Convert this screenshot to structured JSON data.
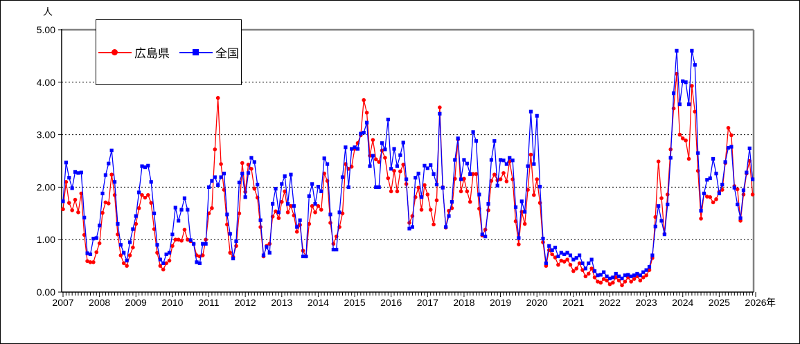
{
  "chart_data": {
    "type": "line",
    "title": "",
    "y_axis": {
      "unit": "人",
      "ticks": [
        "0.00",
        "1.00",
        "2.00",
        "3.00",
        "4.00",
        "5.00"
      ],
      "lim": [
        0,
        5
      ]
    },
    "x_axis": {
      "unit": "年",
      "start_year": 2007,
      "end_year": 2026,
      "interval": "monthly"
    },
    "grid": "horizontal dashed at 1.00 steps",
    "legend_position": "top-left",
    "series": [
      {
        "name": "広島県",
        "color": "#ff0000",
        "marker": "circle",
        "start": "2007-01",
        "values": [
          1.58,
          2.1,
          1.7,
          1.56,
          1.76,
          1.52,
          1.88,
          1.09,
          0.59,
          0.57,
          0.57,
          0.76,
          0.93,
          1.51,
          1.71,
          1.69,
          2.24,
          1.85,
          1.1,
          0.7,
          0.55,
          0.5,
          0.7,
          0.85,
          1.3,
          1.6,
          1.85,
          1.8,
          1.85,
          1.7,
          1.2,
          0.75,
          0.5,
          0.43,
          0.55,
          0.6,
          0.88,
          1.0,
          1.0,
          0.98,
          1.19,
          1.0,
          0.97,
          0.92,
          0.7,
          0.68,
          0.7,
          1.0,
          1.5,
          1.6,
          2.72,
          3.7,
          2.44,
          1.95,
          1.29,
          0.75,
          0.67,
          0.88,
          1.5,
          2.46,
          1.91,
          2.43,
          2.35,
          1.97,
          1.8,
          1.24,
          0.68,
          0.88,
          0.92,
          1.44,
          1.54,
          1.41,
          1.72,
          1.92,
          1.52,
          1.64,
          1.46,
          1.15,
          1.28,
          0.79,
          0.68,
          1.3,
          1.64,
          1.52,
          1.64,
          1.57,
          2.26,
          2.12,
          1.32,
          0.92,
          1.06,
          1.24,
          1.5,
          2.44,
          2.35,
          2.39,
          2.73,
          2.84,
          2.99,
          3.66,
          3.42,
          2.6,
          2.9,
          2.53,
          2.48,
          2.7,
          2.56,
          2.17,
          1.92,
          2.31,
          1.92,
          2.3,
          2.43,
          2.06,
          1.32,
          1.45,
          1.81,
          1.99,
          1.57,
          2.04,
          1.86,
          1.57,
          1.29,
          1.75,
          3.52,
          2.0,
          1.23,
          1.55,
          1.6,
          2.16,
          2.91,
          1.92,
          2.16,
          1.92,
          1.72,
          2.25,
          2.25,
          1.59,
          1.08,
          1.19,
          1.56,
          2.12,
          2.24,
          2.13,
          2.15,
          2.27,
          2.11,
          2.49,
          2.15,
          1.35,
          0.91,
          1.53,
          1.3,
          1.95,
          2.62,
          1.85,
          2.15,
          1.7,
          0.95,
          0.5,
          0.8,
          0.72,
          0.66,
          0.52,
          0.6,
          0.58,
          0.62,
          0.52,
          0.4,
          0.45,
          0.55,
          0.42,
          0.3,
          0.35,
          0.45,
          0.28,
          0.2,
          0.18,
          0.25,
          0.22,
          0.15,
          0.18,
          0.28,
          0.22,
          0.13,
          0.2,
          0.28,
          0.2,
          0.25,
          0.3,
          0.22,
          0.28,
          0.32,
          0.42,
          0.65,
          1.43,
          2.49,
          1.79,
          1.11,
          1.86,
          2.72,
          3.5,
          4.16,
          3.0,
          2.93,
          2.89,
          2.54,
          3.93,
          3.44,
          2.31,
          1.4,
          1.88,
          1.82,
          1.81,
          1.71,
          1.77,
          1.91,
          1.95,
          2.46,
          3.13,
          2.99,
          2.02,
          1.96,
          1.36,
          1.86,
          2.26,
          2.5,
          1.86
        ]
      },
      {
        "name": "全国",
        "color": "#0000ff",
        "marker": "square",
        "start": "2007-01",
        "values": [
          1.73,
          2.47,
          2.18,
          1.98,
          2.29,
          2.27,
          2.28,
          1.42,
          0.74,
          0.72,
          1.02,
          1.03,
          1.27,
          1.88,
          2.23,
          2.45,
          2.7,
          2.1,
          1.3,
          0.9,
          0.75,
          0.6,
          0.95,
          1.2,
          1.45,
          1.9,
          2.4,
          2.38,
          2.41,
          2.1,
          1.5,
          0.9,
          0.62,
          0.55,
          0.72,
          0.75,
          1.1,
          1.61,
          1.36,
          1.57,
          1.79,
          1.57,
          0.99,
          0.92,
          0.57,
          0.55,
          0.92,
          0.92,
          2.0,
          2.12,
          2.19,
          2.04,
          2.19,
          2.26,
          1.48,
          1.11,
          0.64,
          0.97,
          2.09,
          2.26,
          1.81,
          2.27,
          2.56,
          2.48,
          2.05,
          1.37,
          0.7,
          0.86,
          0.75,
          1.68,
          1.97,
          1.52,
          2.06,
          2.21,
          1.68,
          2.24,
          1.64,
          1.24,
          1.37,
          0.68,
          0.68,
          1.83,
          2.06,
          1.68,
          2.01,
          1.92,
          2.55,
          2.44,
          1.48,
          0.81,
          0.81,
          1.52,
          2.19,
          2.76,
          2.0,
          2.73,
          2.76,
          2.73,
          3.02,
          3.04,
          3.23,
          2.4,
          2.6,
          2.0,
          2.0,
          2.84,
          2.72,
          3.29,
          2.35,
          2.73,
          2.4,
          2.61,
          2.85,
          2.15,
          1.21,
          1.24,
          2.18,
          2.26,
          1.81,
          2.41,
          2.36,
          2.42,
          2.25,
          2.05,
          3.4,
          1.99,
          1.24,
          1.45,
          1.72,
          2.52,
          2.93,
          2.15,
          2.52,
          2.45,
          2.25,
          3.05,
          2.88,
          1.86,
          1.1,
          1.06,
          1.68,
          2.52,
          2.88,
          2.03,
          2.52,
          2.51,
          2.44,
          2.56,
          2.51,
          1.62,
          1.03,
          1.73,
          1.53,
          2.4,
          3.44,
          2.44,
          3.36,
          2.01,
          1.02,
          0.55,
          0.88,
          0.8,
          0.85,
          0.68,
          0.75,
          0.72,
          0.75,
          0.7,
          0.62,
          0.65,
          0.7,
          0.55,
          0.45,
          0.55,
          0.62,
          0.4,
          0.32,
          0.33,
          0.38,
          0.3,
          0.26,
          0.28,
          0.35,
          0.3,
          0.26,
          0.32,
          0.33,
          0.3,
          0.32,
          0.35,
          0.32,
          0.38,
          0.42,
          0.48,
          0.7,
          1.25,
          1.64,
          1.36,
          1.1,
          1.67,
          2.56,
          3.79,
          4.6,
          3.58,
          4.02,
          4.0,
          3.58,
          4.6,
          4.33,
          2.65,
          1.55,
          1.88,
          2.14,
          2.17,
          2.54,
          2.26,
          1.88,
          2.05,
          2.48,
          2.75,
          2.77,
          1.99,
          1.67,
          1.41,
          1.94,
          2.28,
          2.74,
          2.15
        ]
      }
    ]
  },
  "legend": {
    "item1": "広島県",
    "item2": "全国",
    "color1": "#ff0000",
    "color2": "#0000ff"
  }
}
